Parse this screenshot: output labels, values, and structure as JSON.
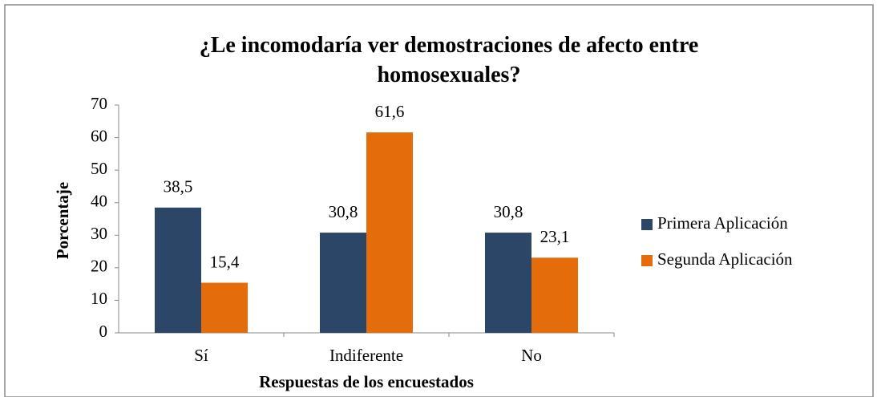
{
  "chart_data": {
    "type": "bar",
    "title": "¿Le incomodaría ver demostraciones de afecto entre homosexuales?",
    "x_label": "Respuestas de los encuestados",
    "y_label": "Porcentaje",
    "categories": [
      "Sí",
      "Indiferente",
      "No"
    ],
    "series": [
      {
        "name": "Primera Aplicación",
        "color": "#2c4668",
        "values": [
          38.5,
          30.8,
          30.8
        ],
        "value_labels": [
          "38,5",
          "30,8",
          "30,8"
        ]
      },
      {
        "name": "Segunda Aplicación",
        "color": "#e46c0a",
        "values": [
          15.4,
          61.6,
          23.1
        ],
        "value_labels": [
          "15,4",
          "61,6",
          "23,1"
        ]
      }
    ],
    "ylim": [
      0,
      70
    ],
    "yticks": [
      0,
      10,
      20,
      30,
      40,
      50,
      60,
      70
    ],
    "legend": "right"
  }
}
